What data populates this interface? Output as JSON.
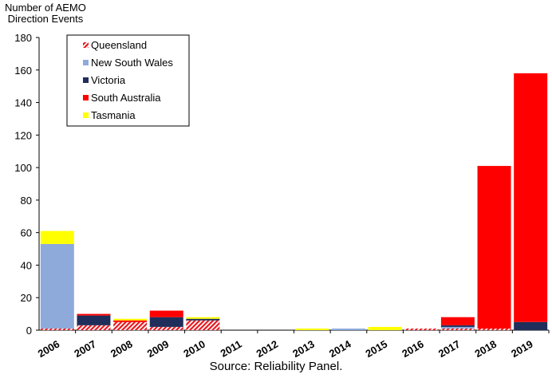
{
  "chart_data": {
    "type": "bar",
    "stacked": true,
    "ylabel_lines": [
      "Number of AEMO",
      "Direction Events"
    ],
    "source": "Source: Reliability Panel.",
    "ylim": [
      0,
      180
    ],
    "yticks": [
      0,
      20,
      40,
      60,
      80,
      100,
      120,
      140,
      160,
      180
    ],
    "grid": false,
    "legend_position": "top-left",
    "categories": [
      "2006",
      "2007",
      "2008",
      "2009",
      "2010",
      "2011",
      "2012",
      "2013",
      "2014",
      "2015",
      "2016",
      "2017",
      "2018",
      "2019"
    ],
    "series": [
      {
        "name": "Queensland",
        "color": "#e8171f",
        "pattern": "hatch",
        "values": [
          1,
          3,
          5,
          2,
          6,
          0,
          0,
          0,
          0,
          0,
          1,
          1,
          1,
          0
        ]
      },
      {
        "name": "New South Wales",
        "color": "#8eaadb",
        "values": [
          52,
          0,
          0,
          0,
          0,
          0,
          0,
          0,
          1,
          0,
          0,
          1,
          0,
          0
        ]
      },
      {
        "name": "Victoria",
        "color": "#1f2e5a",
        "values": [
          0,
          6,
          0,
          6,
          1,
          0,
          0,
          0,
          0,
          0,
          0,
          1,
          0,
          5
        ]
      },
      {
        "name": "South Australia",
        "color": "#ff0000",
        "values": [
          0,
          1,
          1,
          4,
          0,
          0,
          0,
          0,
          0,
          0,
          0,
          5,
          100,
          153
        ]
      },
      {
        "name": "Tasmania",
        "color": "#ffff00",
        "values": [
          8,
          0,
          1,
          0,
          1,
          0,
          0,
          1,
          0,
          2,
          0,
          0,
          0,
          0
        ]
      }
    ]
  }
}
